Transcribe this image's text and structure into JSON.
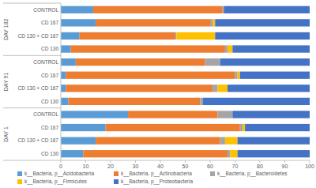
{
  "chart_data": {
    "type": "bar",
    "orientation": "horizontal",
    "stacked": true,
    "grid": false,
    "legend": "bottom",
    "groups": [
      "DAY 182",
      "DAY 91",
      "DAY 1"
    ],
    "categories": [
      "CONTROL",
      "CD 167",
      "CD 130 + CD 167",
      "CD 130",
      "CONTROL",
      "CD 167",
      "CD 130 + CD 167",
      "CD 130",
      "CONTROL",
      "CD 167",
      "CD 130 + CD 167",
      "CD 130"
    ],
    "series": [
      {
        "name": "k__Bacteria, p__Acidobacteria",
        "color": "#5b9bd5",
        "values": [
          13,
          14,
          7.5,
          4,
          6,
          2,
          2,
          3,
          27,
          18,
          14,
          9
        ]
      },
      {
        "name": "k__Bacteria, p__Actinobacteria",
        "color": "#ed7d31",
        "values": [
          52,
          46,
          38.5,
          62,
          52,
          68,
          59,
          53,
          36,
          54,
          50,
          58
        ]
      },
      {
        "name": "k__Bacteria, p__Bacteroidetes",
        "color": "#a5a5a5",
        "values": [
          0.5,
          1,
          0.5,
          1,
          6,
          1,
          2,
          1,
          6,
          1,
          2,
          1
        ]
      },
      {
        "name": "k__Bacteria, p__Firmicutes",
        "color": "#ffc000",
        "values": [
          0,
          1,
          15.5,
          2,
          0,
          1,
          4,
          0,
          0,
          1,
          5,
          3
        ]
      },
      {
        "name": "k__Bacteria, p__Proteobacteria",
        "color": "#4472c4",
        "values": [
          34.5,
          38,
          38,
          31,
          36,
          28,
          33,
          43,
          31,
          26,
          29,
          29
        ]
      }
    ],
    "xlim": [
      0,
      100
    ],
    "xticks": [
      0,
      10,
      20,
      30,
      40,
      50,
      60,
      70,
      80,
      90,
      100
    ]
  }
}
